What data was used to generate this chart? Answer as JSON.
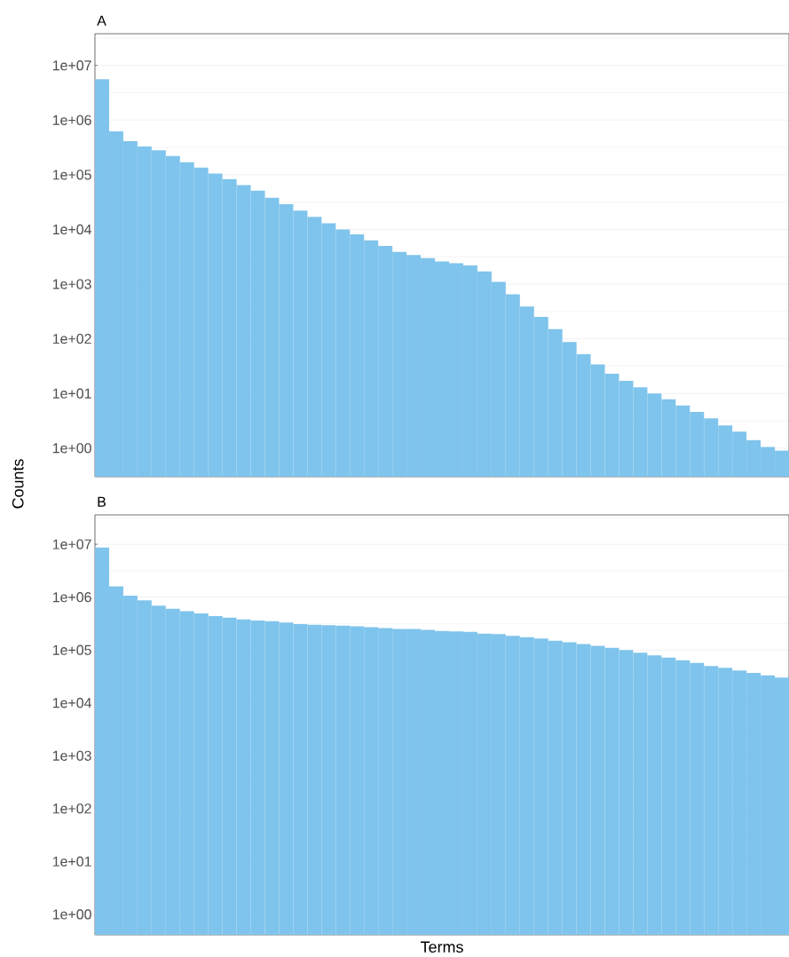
{
  "chart_data": [
    {
      "type": "bar",
      "title": "A",
      "ylabel": "Counts",
      "color": "#7fc4ec",
      "log": "y",
      "grid": "y",
      "ylim": [
        0.3,
        38000000
      ],
      "yticks": [
        {
          "value": 1,
          "label": "1e+00"
        },
        {
          "value": 10,
          "label": "1e+01"
        },
        {
          "value": 100,
          "label": "1e+02"
        },
        {
          "value": 1000,
          "label": "1e+03"
        },
        {
          "value": 10000,
          "label": "1e+04"
        },
        {
          "value": 100000,
          "label": "1e+05"
        },
        {
          "value": 1000000,
          "label": "1e+06"
        },
        {
          "value": 10000000,
          "label": "1e+07"
        }
      ],
      "categories": [
        null,
        null,
        null,
        null,
        null,
        null,
        null,
        null,
        null,
        null,
        null,
        null,
        null,
        null,
        null,
        null,
        null,
        null,
        null,
        null,
        null,
        null,
        null,
        null,
        null,
        null,
        null,
        null,
        null,
        null,
        null,
        null,
        null,
        null,
        null,
        null,
        null,
        null,
        null,
        null,
        null,
        null,
        null,
        null,
        null,
        null,
        null,
        null,
        null
      ],
      "values": [
        5600000,
        620000,
        410000,
        330000,
        280000,
        220000,
        170000,
        135000,
        105000,
        83000,
        65000,
        51000,
        38000,
        29000,
        22000,
        17000,
        13000,
        10000,
        8100,
        6300,
        5000,
        3900,
        3400,
        3000,
        2600,
        2400,
        2200,
        1700,
        1100,
        650,
        390,
        250,
        150,
        87,
        52,
        34,
        23,
        17,
        13,
        10,
        7.8,
        6.0,
        4.6,
        3.5,
        2.6,
        2.0,
        1.4,
        1.05,
        0.9
      ]
    },
    {
      "type": "bar",
      "title": "B",
      "xlabel": "Terms",
      "color": "#7fc4ec",
      "log": "y",
      "grid": "y",
      "ylim": [
        0.41,
        36000000
      ],
      "yticks": [
        {
          "value": 1,
          "label": "1e+00"
        },
        {
          "value": 10,
          "label": "1e+01"
        },
        {
          "value": 100,
          "label": "1e+02"
        },
        {
          "value": 1000,
          "label": "1e+03"
        },
        {
          "value": 10000,
          "label": "1e+04"
        },
        {
          "value": 100000,
          "label": "1e+05"
        },
        {
          "value": 1000000,
          "label": "1e+06"
        },
        {
          "value": 10000000,
          "label": "1e+07"
        }
      ],
      "categories": [
        null,
        null,
        null,
        null,
        null,
        null,
        null,
        null,
        null,
        null,
        null,
        null,
        null,
        null,
        null,
        null,
        null,
        null,
        null,
        null,
        null,
        null,
        null,
        null,
        null,
        null,
        null,
        null,
        null,
        null,
        null,
        null,
        null,
        null,
        null,
        null,
        null,
        null,
        null,
        null,
        null,
        null,
        null,
        null,
        null,
        null,
        null,
        null,
        null
      ],
      "values": [
        8700000,
        1600000,
        1070000,
        870000,
        690000,
        600000,
        540000,
        490000,
        440000,
        410000,
        380000,
        360000,
        350000,
        330000,
        310000,
        300000,
        295000,
        290000,
        280000,
        270000,
        260000,
        250000,
        250000,
        240000,
        230000,
        225000,
        220000,
        205000,
        200000,
        185000,
        175000,
        165000,
        150000,
        140000,
        130000,
        120000,
        110000,
        100000,
        89000,
        79000,
        72000,
        64000,
        57000,
        50000,
        46000,
        41000,
        37000,
        33000,
        30000
      ]
    }
  ]
}
